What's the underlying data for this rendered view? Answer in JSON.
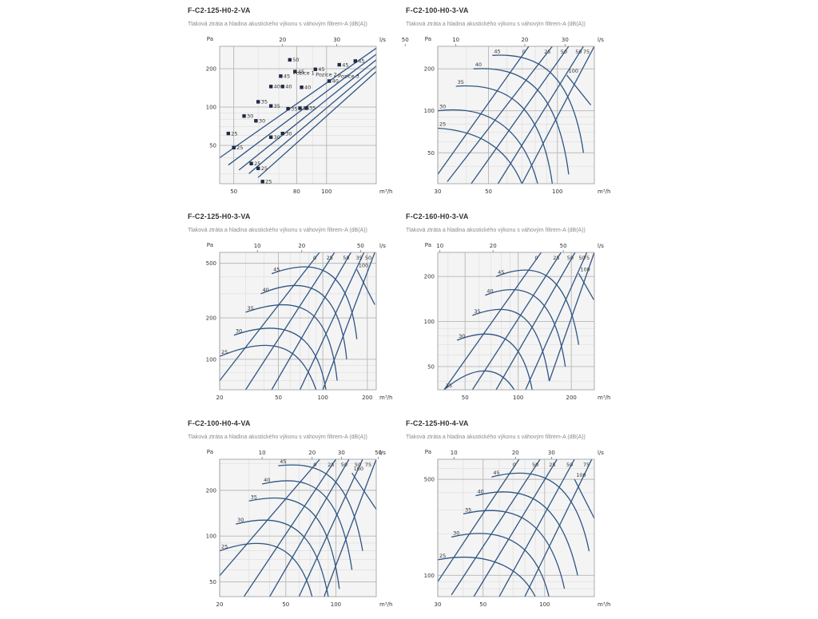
{
  "chart_data": [
    {
      "type": "line",
      "title": "F-C2-125-H0-2-VA",
      "subtitle": "Tlaková ztráta a hladina akustického výkonu s váhovým filtrem-A (dB(A))",
      "ylabel": "Pa",
      "xlabel_top": "l/s",
      "xlabel_bottom": "m³/h",
      "xlim": [
        45,
        145
      ],
      "ylim": [
        25,
        300
      ],
      "xticks": [
        50,
        80,
        100
      ],
      "yticks": [
        50,
        100,
        200
      ],
      "xticks_top": [
        20,
        30,
        50
      ],
      "xticks_top_values": [
        72,
        108,
        180
      ],
      "legend_text": [
        "Pozice 1",
        "Pozice 2",
        "Pozice 3"
      ],
      "operating_lines": [
        {
          "x": [
            45,
            145
          ],
          "y": [
            40,
            290
          ]
        },
        {
          "x": [
            48,
            145
          ],
          "y": [
            35,
            260
          ]
        },
        {
          "x": [
            52,
            145
          ],
          "y": [
            32,
            235
          ]
        },
        {
          "x": [
            56,
            145
          ],
          "y": [
            30,
            210
          ]
        },
        {
          "x": [
            60,
            145
          ],
          "y": [
            28,
            190
          ]
        }
      ],
      "markers": [
        {
          "x": 48,
          "y": 62,
          "label": "25"
        },
        {
          "x": 54,
          "y": 85,
          "label": "30"
        },
        {
          "x": 60,
          "y": 110,
          "label": "35"
        },
        {
          "x": 66,
          "y": 145,
          "label": "40"
        },
        {
          "x": 71,
          "y": 175,
          "label": "45"
        },
        {
          "x": 76,
          "y": 235,
          "label": "50"
        },
        {
          "x": 50,
          "y": 48,
          "label": "25"
        },
        {
          "x": 59,
          "y": 78,
          "label": "30"
        },
        {
          "x": 66,
          "y": 102,
          "label": "35"
        },
        {
          "x": 72,
          "y": 145,
          "label": "40"
        },
        {
          "x": 79,
          "y": 190,
          "label": "45"
        },
        {
          "x": 57,
          "y": 36,
          "label": "25"
        },
        {
          "x": 66,
          "y": 58,
          "label": "30"
        },
        {
          "x": 75,
          "y": 97,
          "label": "35"
        },
        {
          "x": 83,
          "y": 143,
          "label": "40"
        },
        {
          "x": 92,
          "y": 198,
          "label": "45"
        },
        {
          "x": 60,
          "y": 33,
          "label": "25"
        },
        {
          "x": 72,
          "y": 62,
          "label": "30"
        },
        {
          "x": 82,
          "y": 98,
          "label": "35"
        },
        {
          "x": 62,
          "y": 26,
          "label": "25"
        },
        {
          "x": 86,
          "y": 98,
          "label": "35"
        },
        {
          "x": 102,
          "y": 160,
          "label": "40"
        },
        {
          "x": 110,
          "y": 215,
          "label": "45"
        },
        {
          "x": 124,
          "y": 230,
          "label": "45"
        }
      ]
    },
    {
      "type": "line",
      "title": "F-C2-100-H0-3-VA",
      "subtitle": "Tlaková ztráta a hladina akustického výkonu s váhovým filtrem-A (dB(A))",
      "ylabel": "Pa",
      "xlabel_top": "l/s",
      "xlabel_bottom": "m³/h",
      "xlim": [
        30,
        145
      ],
      "ylim": [
        30,
        290
      ],
      "xticks": [
        30,
        50,
        100
      ],
      "yticks": [
        50,
        100,
        200
      ],
      "xticks_top": [
        10,
        20,
        30
      ],
      "xticks_top_values": [
        36,
        72,
        108
      ],
      "operating_labels": [
        "0",
        "25",
        "50",
        "50",
        "75"
      ],
      "operating_lines": [
        {
          "x": [
            30,
            75
          ],
          "y": [
            35,
            290
          ]
        },
        {
          "x": [
            33,
            95
          ],
          "y": [
            31,
            290
          ]
        },
        {
          "x": [
            42,
            112
          ],
          "y": [
            30,
            290
          ]
        },
        {
          "x": [
            55,
            130
          ],
          "y": [
            30,
            290
          ]
        },
        {
          "x": [
            70,
            145
          ],
          "y": [
            30,
            290
          ]
        }
      ],
      "fan_curves": [
        {
          "label": "25",
          "x": [
            30,
            45,
            60,
            70
          ],
          "y": [
            75,
            72,
            55,
            30
          ]
        },
        {
          "label": "30",
          "x": [
            30,
            48,
            70,
            82
          ],
          "y": [
            100,
            110,
            80,
            30
          ]
        },
        {
          "label": "35",
          "x": [
            36,
            60,
            85,
            95
          ],
          "y": [
            150,
            160,
            110,
            30
          ]
        },
        {
          "label": "40",
          "x": [
            43,
            70,
            100,
            112
          ],
          "y": [
            200,
            210,
            150,
            35
          ]
        },
        {
          "label": "45",
          "x": [
            52,
            80,
            115,
            130
          ],
          "y": [
            250,
            260,
            200,
            50
          ]
        },
        {
          "label": "100",
          "x": [
            110,
            140
          ],
          "y": [
            180,
            110
          ]
        }
      ]
    },
    {
      "type": "line",
      "title": "F-C2-125-H0-3-VA",
      "subtitle": "Tlaková ztráta a hladina akustického výkonu s váhovým filtrem-A (dB(A))",
      "ylabel": "Pa",
      "xlabel_top": "l/s",
      "xlabel_bottom": "m³/h",
      "xlim": [
        20,
        230
      ],
      "ylim": [
        60,
        600
      ],
      "xticks": [
        20,
        50,
        100,
        200
      ],
      "yticks": [
        100,
        200,
        500
      ],
      "xticks_top": [
        10,
        20,
        50
      ],
      "xticks_top_values": [
        36,
        72,
        180
      ],
      "operating_labels": [
        "0",
        "25",
        "50",
        "35",
        "50"
      ],
      "operating_lines": [
        {
          "x": [
            20,
            95
          ],
          "y": [
            70,
            600
          ]
        },
        {
          "x": [
            30,
            120
          ],
          "y": [
            60,
            600
          ]
        },
        {
          "x": [
            45,
            155
          ],
          "y": [
            60,
            600
          ]
        },
        {
          "x": [
            70,
            190
          ],
          "y": [
            60,
            600
          ]
        },
        {
          "x": [
            100,
            225
          ],
          "y": [
            60,
            600
          ]
        }
      ],
      "fan_curves": [
        {
          "label": "25",
          "x": [
            20,
            45,
            70,
            90
          ],
          "y": [
            105,
            150,
            130,
            60
          ]
        },
        {
          "label": "30",
          "x": [
            25,
            55,
            90,
            105
          ],
          "y": [
            150,
            200,
            160,
            60
          ]
        },
        {
          "label": "35",
          "x": [
            30,
            70,
            110,
            125
          ],
          "y": [
            220,
            300,
            240,
            70
          ]
        },
        {
          "label": "40",
          "x": [
            38,
            80,
            130,
            145
          ],
          "y": [
            300,
            420,
            330,
            100
          ]
        },
        {
          "label": "45",
          "x": [
            45,
            95,
            150,
            170
          ],
          "y": [
            420,
            560,
            450,
            140
          ]
        },
        {
          "label": "100",
          "x": [
            170,
            225
          ],
          "y": [
            450,
            250
          ]
        }
      ]
    },
    {
      "type": "line",
      "title": "F-C2-160-H0-3-VA",
      "subtitle": "Tlaková ztráta a hladina akustického výkonu s váhovým filtrem-A (dB(A))",
      "ylabel": "Pa",
      "xlabel_top": "l/s",
      "xlabel_bottom": "m³/h",
      "xlim": [
        35,
        270
      ],
      "ylim": [
        35,
        290
      ],
      "xticks": [
        50,
        100,
        200
      ],
      "yticks": [
        50,
        100,
        200
      ],
      "xticks_top": [
        10,
        20,
        50
      ],
      "xticks_top_values": [
        36,
        72,
        180
      ],
      "operating_labels": [
        "0",
        "25",
        "50",
        "50",
        "75"
      ],
      "operating_lines": [
        {
          "x": [
            38,
            135
          ],
          "y": [
            35,
            290
          ]
        },
        {
          "x": [
            55,
            175
          ],
          "y": [
            35,
            290
          ]
        },
        {
          "x": [
            75,
            210
          ],
          "y": [
            35,
            290
          ]
        },
        {
          "x": [
            110,
            245
          ],
          "y": [
            35,
            290
          ]
        },
        {
          "x": [
            150,
            270
          ],
          "y": [
            40,
            290
          ]
        }
      ],
      "fan_curves": [
        {
          "label": "25",
          "x": [
            38,
            60,
            80,
            95
          ],
          "y": [
            35,
            55,
            48,
            35
          ]
        },
        {
          "label": "30",
          "x": [
            45,
            75,
            105,
            120
          ],
          "y": [
            75,
            95,
            80,
            35
          ]
        },
        {
          "label": "35",
          "x": [
            55,
            95,
            130,
            150
          ],
          "y": [
            110,
            140,
            115,
            40
          ]
        },
        {
          "label": "40",
          "x": [
            65,
            110,
            160,
            185
          ],
          "y": [
            150,
            190,
            155,
            50
          ]
        },
        {
          "label": "45",
          "x": [
            75,
            130,
            190,
            220
          ],
          "y": [
            200,
            260,
            210,
            70
          ]
        },
        {
          "label": "100",
          "x": [
            220,
            268
          ],
          "y": [
            210,
            140
          ]
        }
      ]
    },
    {
      "type": "line",
      "title": "F-C2-100-H0-4-VA",
      "subtitle": "Tlaková ztráta a hladina akustického výkonu s váhovým filtrem-A (dB(A))",
      "ylabel": "Pa",
      "xlabel_top": "l/s",
      "xlabel_bottom": "m³/h",
      "xlim": [
        20,
        175
      ],
      "ylim": [
        40,
        320
      ],
      "xticks": [
        20,
        50,
        100
      ],
      "yticks": [
        50,
        100,
        200
      ],
      "xticks_top": [
        10,
        20,
        30,
        50
      ],
      "xticks_top_values": [
        36,
        72,
        108,
        180
      ],
      "operating_labels": [
        "0",
        "25",
        "50",
        "50",
        "75"
      ],
      "operating_lines": [
        {
          "x": [
            20,
            80
          ],
          "y": [
            55,
            320
          ]
        },
        {
          "x": [
            28,
            100
          ],
          "y": [
            40,
            320
          ]
        },
        {
          "x": [
            40,
            120
          ],
          "y": [
            40,
            320
          ]
        },
        {
          "x": [
            60,
            145
          ],
          "y": [
            40,
            320
          ]
        },
        {
          "x": [
            85,
            175
          ],
          "y": [
            40,
            320
          ]
        }
      ],
      "fan_curves": [
        {
          "label": "25",
          "x": [
            20,
            40,
            60,
            72
          ],
          "y": [
            80,
            105,
            85,
            40
          ]
        },
        {
          "label": "30",
          "x": [
            25,
            50,
            75,
            90
          ],
          "y": [
            120,
            145,
            115,
            40
          ]
        },
        {
          "label": "35",
          "x": [
            30,
            60,
            90,
            105
          ],
          "y": [
            170,
            200,
            160,
            45
          ]
        },
        {
          "label": "40",
          "x": [
            36,
            70,
            105,
            125
          ],
          "y": [
            220,
            260,
            210,
            60
          ]
        },
        {
          "label": "45",
          "x": [
            45,
            80,
            120,
            145
          ],
          "y": [
            290,
            310,
            260,
            80
          ]
        },
        {
          "label": "100",
          "x": [
            125,
            175
          ],
          "y": [
            260,
            150
          ]
        }
      ]
    },
    {
      "type": "line",
      "title": "F-C2-125-H0-4-VA",
      "subtitle": "Tlaková ztráta a hladina akustického výkonu s váhovým filtrem-A (dB(A))",
      "ylabel": "Pa",
      "xlabel_top": "l/s",
      "xlabel_bottom": "m³/h",
      "xlim": [
        30,
        175
      ],
      "ylim": [
        70,
        700
      ],
      "xticks": [
        30,
        50,
        100
      ],
      "yticks": [
        100,
        500
      ],
      "xticks_top": [
        10,
        20,
        30
      ],
      "xticks_top_values": [
        36,
        72,
        108
      ],
      "operating_labels": [
        "0",
        "50",
        "25",
        "50",
        "75"
      ],
      "operating_lines": [
        {
          "x": [
            30,
            75
          ],
          "y": [
            90,
            700
          ]
        },
        {
          "x": [
            35,
            95
          ],
          "y": [
            72,
            700
          ]
        },
        {
          "x": [
            45,
            115
          ],
          "y": [
            70,
            700
          ]
        },
        {
          "x": [
            60,
            140
          ],
          "y": [
            70,
            700
          ]
        },
        {
          "x": [
            80,
            170
          ],
          "y": [
            70,
            700
          ]
        }
      ],
      "fan_curves": [
        {
          "label": "25",
          "x": [
            30,
            50,
            75,
            90
          ],
          "y": [
            130,
            150,
            120,
            70
          ]
        },
        {
          "label": "30",
          "x": [
            35,
            60,
            90,
            105
          ],
          "y": [
            190,
            230,
            180,
            70
          ]
        },
        {
          "label": "35",
          "x": [
            40,
            70,
            105,
            125
          ],
          "y": [
            280,
            340,
            260,
            80
          ]
        },
        {
          "label": "40",
          "x": [
            46,
            80,
            120,
            145
          ],
          "y": [
            380,
            470,
            360,
            100
          ]
        },
        {
          "label": "45",
          "x": [
            55,
            95,
            140,
            165
          ],
          "y": [
            520,
            640,
            500,
            150
          ]
        },
        {
          "label": "100",
          "x": [
            140,
            175
          ],
          "y": [
            500,
            260
          ]
        }
      ]
    }
  ]
}
